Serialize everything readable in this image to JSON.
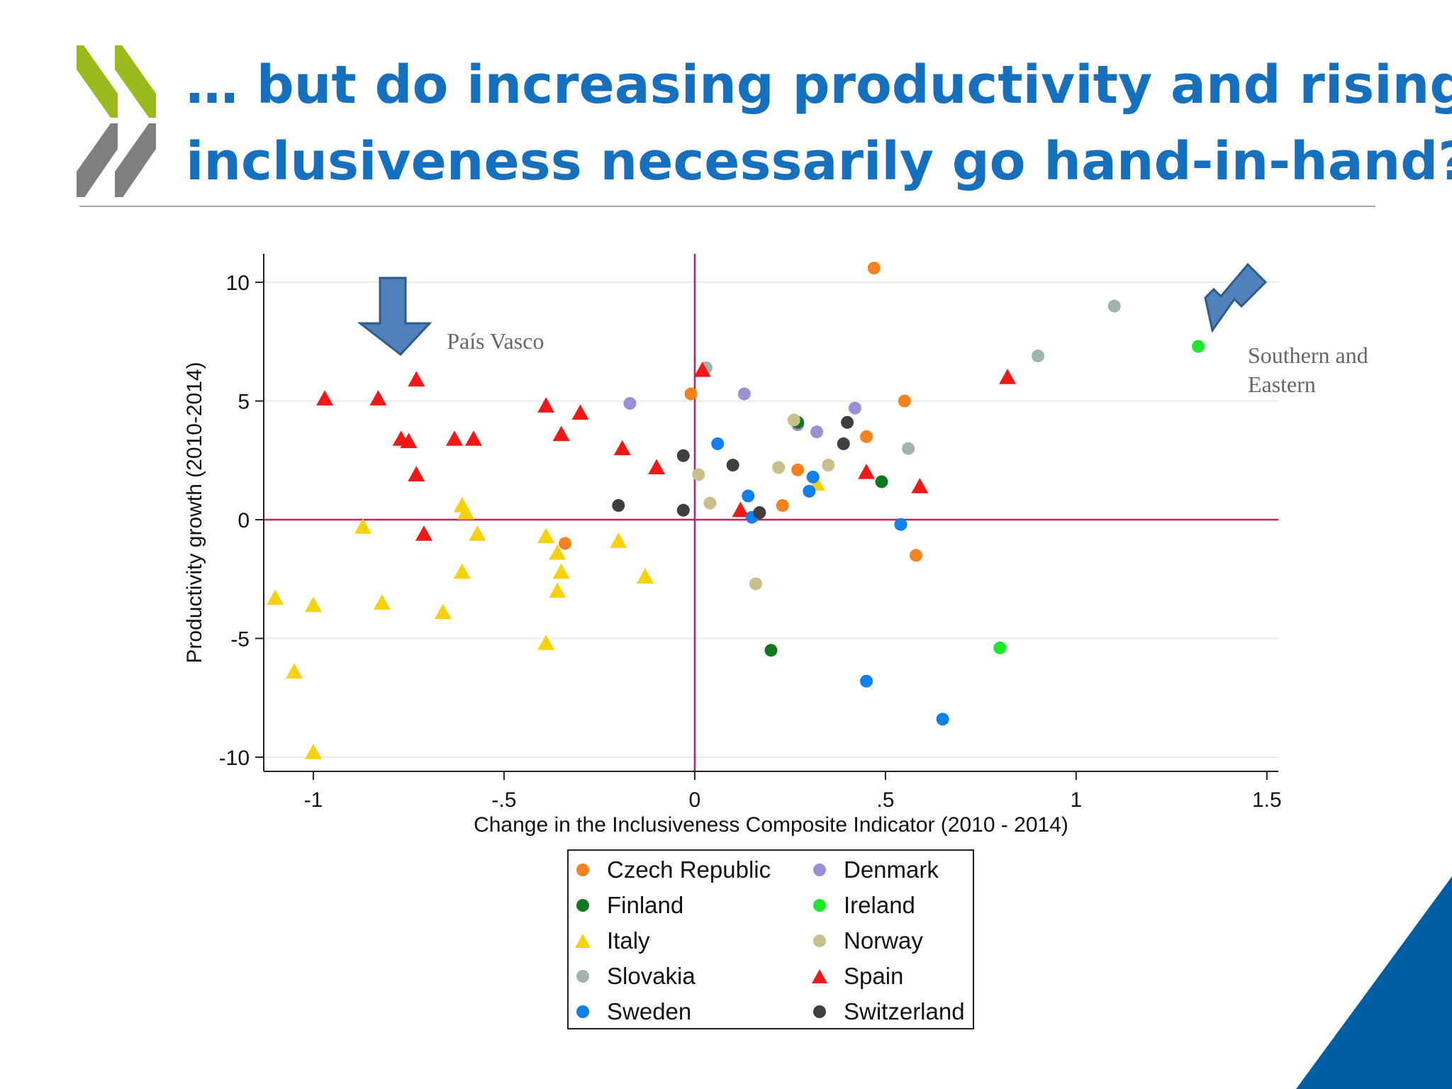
{
  "slide": {
    "title_line1": "… but do increasing productivity and rising",
    "title_line2": "inclusiveness necessarily go hand-in-hand?",
    "title_color": "#1670c0",
    "brand_green": "#9bbb1c",
    "brand_gray": "#7f7f7f",
    "corner_color": "#005ea5",
    "icons": [
      "oecd-chevron-logo-icon",
      "down-arrow-icon"
    ]
  },
  "chart_data": {
    "type": "scatter",
    "title": "",
    "xlabel": "Change in the Inclusiveness Composite Indicator (2010 - 2014)",
    "ylabel": "Productivity growth (2010-2014)",
    "xlim": [
      -1.13,
      1.53
    ],
    "ylim": [
      -10.6,
      11.2
    ],
    "x_ticks": [
      -1,
      -0.5,
      0,
      0.5,
      1,
      1.5
    ],
    "x_tick_labels": [
      "-1",
      "-.5",
      "0",
      ".5",
      "1",
      "1.5"
    ],
    "y_ticks": [
      -10,
      -5,
      0,
      5,
      10
    ],
    "y_tick_labels": [
      "-10",
      "-5",
      "0",
      "5",
      "10"
    ],
    "grid": "horizontal",
    "reference_lines": {
      "x": 0,
      "y": 0,
      "color": "#c0245c"
    },
    "legend_position": "bottom-center",
    "annotations": [
      {
        "text": "País Vasco",
        "x": -0.65,
        "y": 7.2
      },
      {
        "text": "Southern and Eastern",
        "x": 1.45,
        "y": 6.6
      }
    ],
    "series": [
      {
        "name": "Czech Republic",
        "marker": "circle",
        "color": "#f6821f",
        "points": [
          [
            0.47,
            10.6
          ],
          [
            -0.01,
            5.3
          ],
          [
            0.55,
            5.0
          ],
          [
            0.45,
            3.5
          ],
          [
            0.27,
            2.1
          ],
          [
            0.23,
            0.6
          ],
          [
            -0.34,
            -1.0
          ],
          [
            0.58,
            -1.5
          ]
        ]
      },
      {
        "name": "Denmark",
        "marker": "circle",
        "color": "#9b8fd6",
        "points": [
          [
            -0.17,
            4.9
          ],
          [
            0.13,
            5.3
          ],
          [
            0.42,
            4.7
          ],
          [
            0.32,
            3.7
          ],
          [
            0.27,
            4.0
          ]
        ]
      },
      {
        "name": "Finland",
        "marker": "circle",
        "color": "#0e7a1e",
        "points": [
          [
            0.27,
            4.1
          ],
          [
            0.49,
            1.6
          ],
          [
            0.2,
            -5.5
          ]
        ]
      },
      {
        "name": "Ireland",
        "marker": "circle",
        "color": "#1ee82a",
        "points": [
          [
            1.32,
            7.3
          ],
          [
            0.8,
            -5.4
          ]
        ]
      },
      {
        "name": "Italy",
        "marker": "triangle",
        "color": "#f6d20a",
        "points": [
          [
            -0.87,
            -0.3
          ],
          [
            -0.61,
            0.6
          ],
          [
            -0.6,
            0.3
          ],
          [
            -0.57,
            -0.6
          ],
          [
            -0.39,
            -0.7
          ],
          [
            -0.36,
            -1.4
          ],
          [
            -0.2,
            -0.9
          ],
          [
            0.32,
            1.5
          ],
          [
            -0.35,
            -2.2
          ],
          [
            -0.61,
            -2.2
          ],
          [
            -0.13,
            -2.4
          ],
          [
            -0.36,
            -3.0
          ],
          [
            -0.82,
            -3.5
          ],
          [
            -0.66,
            -3.9
          ],
          [
            -1.1,
            -3.3
          ],
          [
            -1.0,
            -3.6
          ],
          [
            -0.39,
            -5.2
          ],
          [
            -1.05,
            -6.4
          ],
          [
            -1.0,
            -9.8
          ]
        ]
      },
      {
        "name": "Norway",
        "marker": "circle",
        "color": "#c8c08a",
        "points": [
          [
            0.26,
            4.2
          ],
          [
            0.35,
            2.3
          ],
          [
            0.22,
            2.2
          ],
          [
            0.01,
            1.9
          ],
          [
            0.04,
            0.7
          ],
          [
            0.16,
            -2.7
          ]
        ]
      },
      {
        "name": "Slovakia",
        "marker": "circle",
        "color": "#9fb5ad",
        "points": [
          [
            1.1,
            9.0
          ],
          [
            0.9,
            6.9
          ],
          [
            0.03,
            6.4
          ],
          [
            0.56,
            3.0
          ]
        ]
      },
      {
        "name": "Spain",
        "marker": "triangle",
        "color": "#f21818",
        "points": [
          [
            -0.73,
            5.9
          ],
          [
            0.02,
            6.3
          ],
          [
            0.82,
            6.0
          ],
          [
            -0.97,
            5.1
          ],
          [
            -0.83,
            5.1
          ],
          [
            -0.39,
            4.8
          ],
          [
            -0.3,
            4.5
          ],
          [
            -0.35,
            3.6
          ],
          [
            -0.77,
            3.4
          ],
          [
            -0.75,
            3.3
          ],
          [
            -0.63,
            3.4
          ],
          [
            -0.58,
            3.4
          ],
          [
            -0.19,
            3.0
          ],
          [
            -0.73,
            1.9
          ],
          [
            -0.1,
            2.2
          ],
          [
            0.45,
            2.0
          ],
          [
            0.59,
            1.4
          ],
          [
            0.12,
            0.4
          ],
          [
            -0.71,
            -0.6
          ]
        ]
      },
      {
        "name": "Sweden",
        "marker": "circle",
        "color": "#1080f0",
        "points": [
          [
            0.06,
            3.2
          ],
          [
            0.31,
            1.8
          ],
          [
            0.3,
            1.2
          ],
          [
            0.14,
            1.0
          ],
          [
            0.15,
            0.1
          ],
          [
            0.54,
            -0.2
          ],
          [
            0.45,
            -6.8
          ],
          [
            0.65,
            -8.4
          ]
        ]
      },
      {
        "name": "Switzerland",
        "marker": "circle",
        "color": "#3f3f3f",
        "points": [
          [
            0.4,
            4.1
          ],
          [
            0.39,
            3.2
          ],
          [
            -0.03,
            2.7
          ],
          [
            0.1,
            2.3
          ],
          [
            -0.2,
            0.6
          ],
          [
            -0.03,
            0.4
          ],
          [
            0.17,
            0.3
          ]
        ]
      }
    ]
  },
  "legend": {
    "items": [
      {
        "label": "Czech Republic",
        "marker": "circle",
        "color": "#f6821f"
      },
      {
        "label": "Denmark",
        "marker": "circle",
        "color": "#9b8fd6"
      },
      {
        "label": "Finland",
        "marker": "circle",
        "color": "#0e7a1e"
      },
      {
        "label": "Ireland",
        "marker": "circle",
        "color": "#1ee82a"
      },
      {
        "label": "Italy",
        "marker": "triangle",
        "color": "#f6d20a"
      },
      {
        "label": "Norway",
        "marker": "circle",
        "color": "#c8c08a"
      },
      {
        "label": "Slovakia",
        "marker": "circle",
        "color": "#9fb5ad"
      },
      {
        "label": "Spain",
        "marker": "triangle",
        "color": "#f21818"
      },
      {
        "label": "Sweden",
        "marker": "circle",
        "color": "#1080f0"
      },
      {
        "label": "Switzerland",
        "marker": "circle",
        "color": "#3f3f3f"
      }
    ]
  }
}
